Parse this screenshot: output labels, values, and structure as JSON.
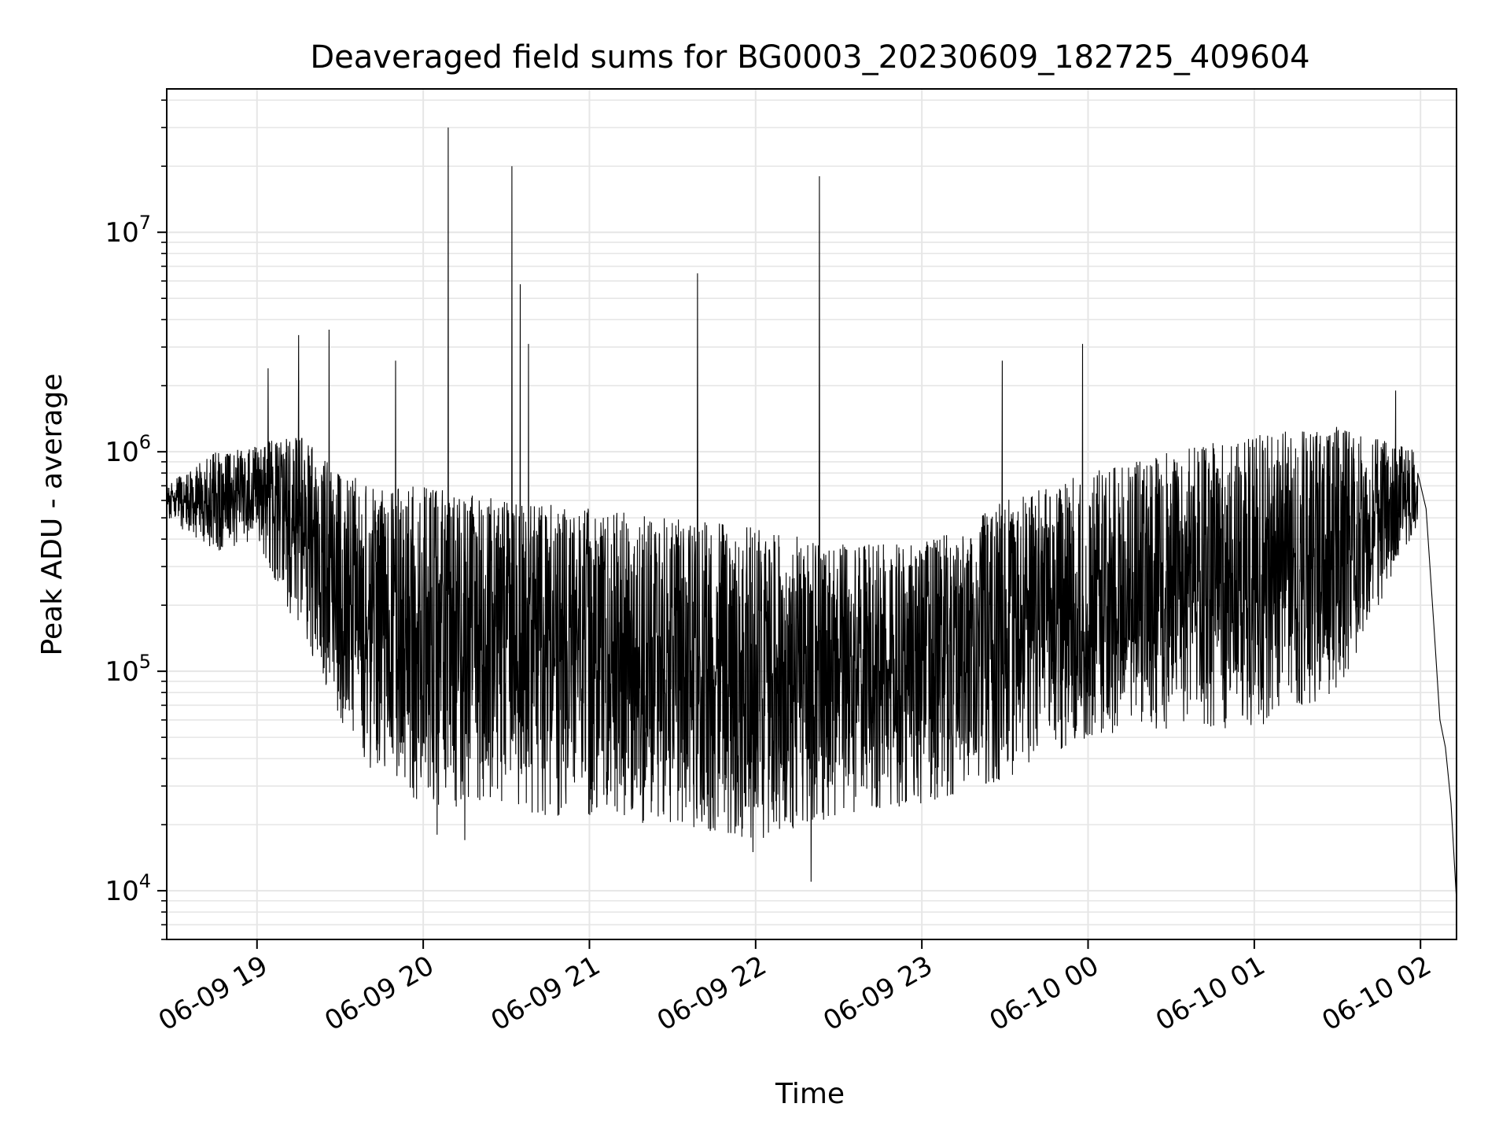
{
  "chart_data": {
    "type": "line",
    "title": "Deaveraged field sums for BG0003_20230609_182725_409604",
    "xlabel": "Time",
    "ylabel": "Peak ADU - average",
    "xscale": "time",
    "yscale": "log",
    "xlim": [
      "2023-06-09 18:27:25",
      "2023-06-10 02:13:00"
    ],
    "ylim": [
      6000,
      45000000
    ],
    "grid": true,
    "legend": "none",
    "x_ticks": [
      {
        "t": "2023-06-09 19:00",
        "label": "06-09 19"
      },
      {
        "t": "2023-06-09 20:00",
        "label": "06-09 20"
      },
      {
        "t": "2023-06-09 21:00",
        "label": "06-09 21"
      },
      {
        "t": "2023-06-09 22:00",
        "label": "06-09 22"
      },
      {
        "t": "2023-06-09 23:00",
        "label": "06-09 23"
      },
      {
        "t": "2023-06-10 00:00",
        "label": "06-10 00"
      },
      {
        "t": "2023-06-10 01:00",
        "label": "06-10 01"
      },
      {
        "t": "2023-06-10 02:00",
        "label": "06-10 02"
      }
    ],
    "y_ticks": [
      {
        "value": 10000,
        "base": "10",
        "exp": "4"
      },
      {
        "value": 100000,
        "base": "10",
        "exp": "5"
      },
      {
        "value": 1000000,
        "base": "10",
        "exp": "6"
      },
      {
        "value": 10000000,
        "base": "10",
        "exp": "7"
      }
    ],
    "line_color": "#000000",
    "grid_color": "#e6e6e6",
    "series": [
      {
        "envelope": {
          "times": [
            "2023-06-09 18:27",
            "2023-06-09 18:45",
            "2023-06-09 19:00",
            "2023-06-09 19:15",
            "2023-06-09 19:30",
            "2023-06-09 19:45",
            "2023-06-09 20:00",
            "2023-06-09 20:30",
            "2023-06-09 21:00",
            "2023-06-09 21:30",
            "2023-06-09 22:00",
            "2023-06-09 22:30",
            "2023-06-09 23:00",
            "2023-06-09 23:30",
            "2023-06-10 00:00",
            "2023-06-10 00:30",
            "2023-06-10 01:00",
            "2023-06-10 01:30",
            "2023-06-10 02:00"
          ],
          "low": [
            500000,
            350000,
            400000,
            150000,
            60000,
            30000,
            25000,
            23000,
            21000,
            20000,
            17000,
            22000,
            25000,
            32000,
            50000,
            55000,
            55000,
            80000,
            500000
          ],
          "high": [
            700000,
            1000000,
            1100000,
            1200000,
            800000,
            700000,
            700000,
            600000,
            550000,
            500000,
            450000,
            380000,
            380000,
            600000,
            800000,
            1000000,
            1200000,
            1300000,
            1000000
          ]
        },
        "spikes": [
          {
            "t": "2023-06-09 19:04",
            "y": 2400000
          },
          {
            "t": "2023-06-09 19:15",
            "y": 3400000
          },
          {
            "t": "2023-06-09 19:26",
            "y": 3600000
          },
          {
            "t": "2023-06-09 19:50",
            "y": 2600000
          },
          {
            "t": "2023-06-09 20:09",
            "y": 30000000
          },
          {
            "t": "2023-06-09 20:32",
            "y": 20000000
          },
          {
            "t": "2023-06-09 20:35",
            "y": 5800000
          },
          {
            "t": "2023-06-09 20:38",
            "y": 3100000
          },
          {
            "t": "2023-06-09 21:39",
            "y": 6500000
          },
          {
            "t": "2023-06-09 22:23",
            "y": 18000000
          },
          {
            "t": "2023-06-09 23:29",
            "y": 2600000
          },
          {
            "t": "2023-06-09 23:58",
            "y": 3100000
          },
          {
            "t": "2023-06-10 01:51",
            "y": 1900000
          }
        ],
        "dips": [
          {
            "t": "2023-06-09 20:05",
            "y": 18000
          },
          {
            "t": "2023-06-09 20:15",
            "y": 17000
          },
          {
            "t": "2023-06-09 21:59",
            "y": 15000
          },
          {
            "t": "2023-06-09 22:20",
            "y": 11000
          }
        ],
        "tail": [
          {
            "t": "2023-06-10 01:59",
            "y": 800000
          },
          {
            "t": "2023-06-10 02:02",
            "y": 550000
          },
          {
            "t": "2023-06-10 02:05",
            "y": 150000
          },
          {
            "t": "2023-06-10 02:07",
            "y": 60000
          },
          {
            "t": "2023-06-10 02:09",
            "y": 45000
          },
          {
            "t": "2023-06-10 02:11",
            "y": 25000
          },
          {
            "t": "2023-06-10 02:13",
            "y": 9000
          }
        ]
      }
    ]
  }
}
